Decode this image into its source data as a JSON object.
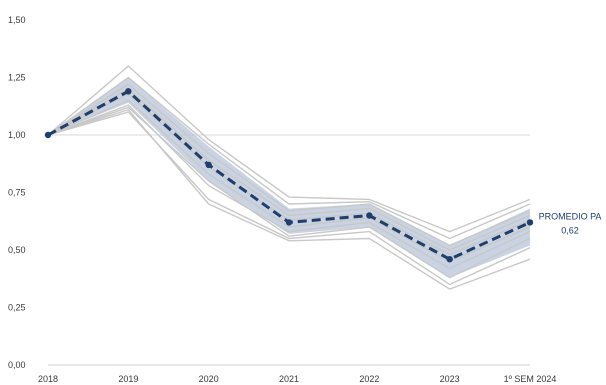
{
  "chart_data": {
    "type": "line",
    "title": "",
    "xlabel": "",
    "ylabel": "",
    "categories": [
      "2018",
      "2019",
      "2020",
      "2021",
      "2022",
      "2023",
      "1º SEM 2024"
    ],
    "ylim": [
      0,
      1.5
    ],
    "y_ticks": [
      "0,00",
      "0,25",
      "0,50",
      "0,75",
      "1,00",
      "1,25",
      "1,50"
    ],
    "reference_line": 1.0,
    "band": {
      "lower": [
        1.0,
        1.14,
        0.8,
        0.57,
        0.6,
        0.38,
        0.52
      ],
      "upper": [
        1.0,
        1.25,
        0.95,
        0.68,
        0.7,
        0.52,
        0.68
      ]
    },
    "series": [
      {
        "values": [
          1.0,
          1.3,
          0.98,
          0.73,
          0.72,
          0.58,
          0.72
        ],
        "color": "#c8c8c8"
      },
      {
        "values": [
          1.0,
          1.25,
          0.96,
          0.7,
          0.71,
          0.55,
          0.7
        ],
        "color": "#c8c8c8"
      },
      {
        "values": [
          1.0,
          1.22,
          0.92,
          0.67,
          0.7,
          0.52,
          0.67
        ],
        "color": "#c8c8c8"
      },
      {
        "values": [
          1.0,
          1.2,
          0.89,
          0.65,
          0.68,
          0.5,
          0.65
        ],
        "color": "#c8c8c8"
      },
      {
        "values": [
          1.0,
          1.18,
          0.86,
          0.63,
          0.66,
          0.48,
          0.63
        ],
        "color": "#c8c8c8"
      },
      {
        "values": [
          1.0,
          1.15,
          0.83,
          0.6,
          0.64,
          0.45,
          0.6
        ],
        "color": "#c8c8c8"
      },
      {
        "values": [
          1.0,
          1.13,
          0.78,
          0.58,
          0.62,
          0.42,
          0.58
        ],
        "color": "#c8c8c8"
      },
      {
        "values": [
          1.0,
          1.12,
          0.8,
          0.56,
          0.6,
          0.38,
          0.55
        ],
        "color": "#c8c8c8"
      },
      {
        "values": [
          1.0,
          1.1,
          0.72,
          0.55,
          0.58,
          0.35,
          0.51
        ],
        "color": "#c8c8c8"
      },
      {
        "values": [
          1.0,
          1.11,
          0.7,
          0.54,
          0.55,
          0.33,
          0.46
        ],
        "color": "#c8c8c8"
      }
    ],
    "average": {
      "values": [
        1.0,
        1.19,
        0.87,
        0.62,
        0.65,
        0.46,
        0.62
      ],
      "color": "#1f3e6b",
      "label": "PROMEDIO PA",
      "value_label": "0,62"
    },
    "band_color": "#b7c4d9",
    "grid": false
  }
}
